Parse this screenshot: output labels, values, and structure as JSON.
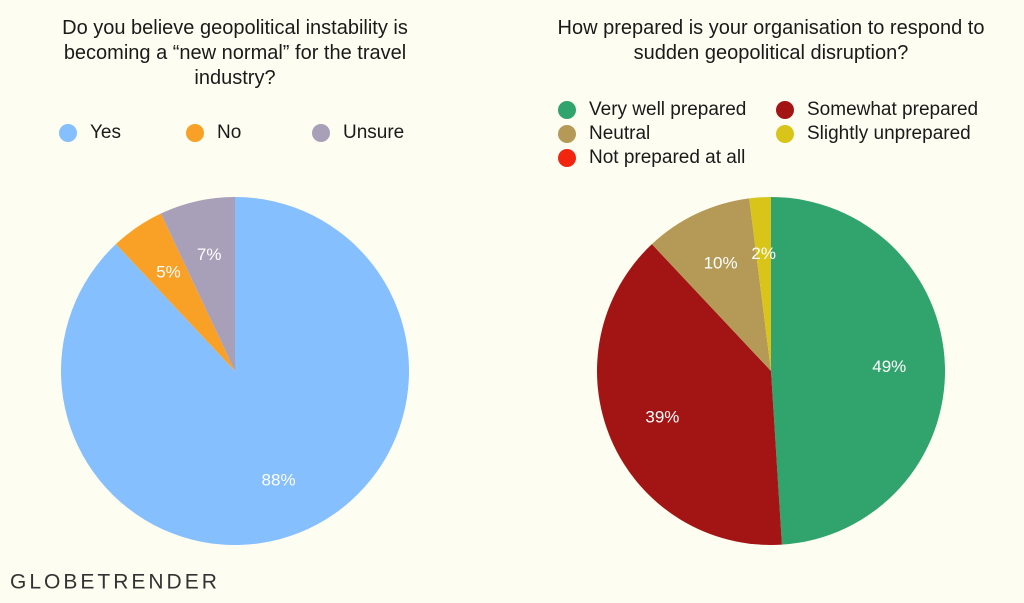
{
  "brand": "GLOBETRENDER",
  "chart_data": [
    {
      "type": "pie",
      "title": "Do you believe geopolitical instability is becoming a “new normal” for the travel industry?",
      "categories": [
        "Yes",
        "No",
        "Unsure"
      ],
      "values": [
        88,
        5,
        7
      ],
      "value_labels": [
        "88%",
        "5%",
        "7%"
      ],
      "colors": [
        "#85bffd",
        "#f9a126",
        "#a89fb8"
      ],
      "legend": "top"
    },
    {
      "type": "pie",
      "title": "How prepared is your organisation to respond to sudden geopolitical disruption?",
      "categories": [
        "Very well prepared",
        "Somewhat prepared",
        "Neutral",
        "Slightly unprepared",
        "Not prepared at all"
      ],
      "values": [
        49,
        39,
        10,
        2,
        0
      ],
      "value_labels": [
        "49%",
        "39%",
        "10%",
        "2%",
        null
      ],
      "colors": [
        "#31a36c",
        "#a31414",
        "#b59a57",
        "#d9c51a",
        "#f2260f"
      ],
      "legend": "top"
    }
  ]
}
